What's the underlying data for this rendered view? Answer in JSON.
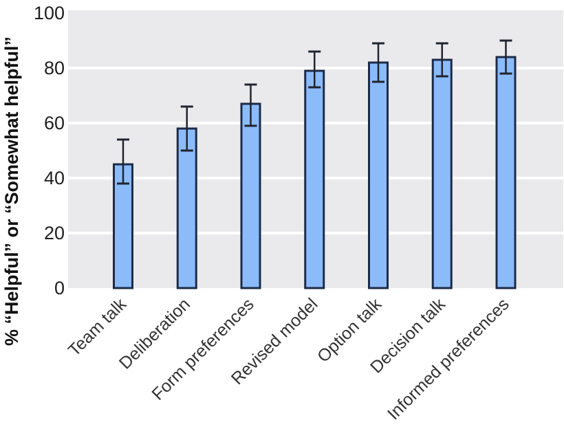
{
  "chart_data": {
    "type": "bar",
    "title": "",
    "xlabel": "",
    "ylabel": "% “Helpful” or “Somewhat helpful”",
    "categories": [
      "Team talk",
      "Deliberation",
      "Form preferences",
      "Revised model",
      "Option talk",
      "Decision talk",
      "Informed preferences"
    ],
    "values": [
      45,
      58,
      67,
      79,
      82,
      83,
      84
    ],
    "error_low": [
      38,
      50,
      59,
      73,
      75,
      77,
      78
    ],
    "error_high": [
      54,
      66,
      74,
      86,
      89,
      89,
      90
    ],
    "yticks": [
      0,
      20,
      40,
      60,
      80,
      100
    ],
    "ylim": [
      0,
      101
    ],
    "grid": true,
    "legend": false,
    "colors": {
      "bar_fill": "#8cbbfa",
      "bar_stroke": "#1c2b47",
      "error_bar": "#20242e",
      "plot_bg": "#eaeaec",
      "gridline": "#ffffff",
      "tick_text": "#1f1f1f",
      "category_text": "#333333",
      "page_bg": "#ffffff"
    }
  }
}
